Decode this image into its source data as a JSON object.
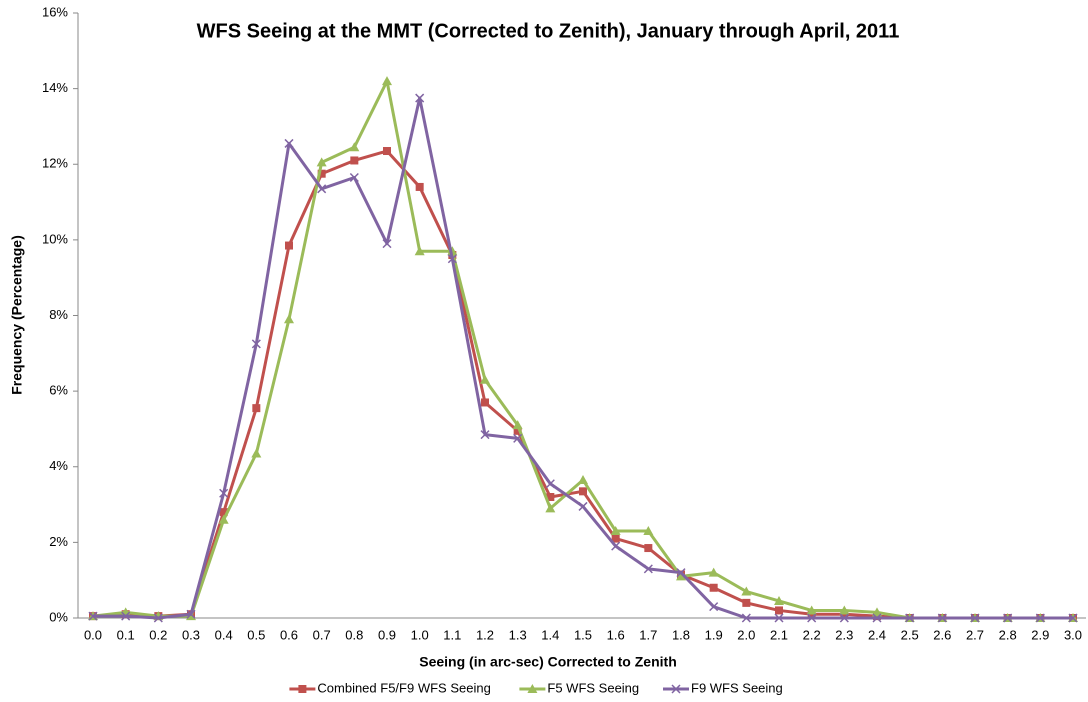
{
  "chart_data": {
    "type": "line",
    "title": "WFS Seeing at the MMT (Corrected to Zenith), January through April, 2011",
    "x_label": "Seeing (in arc-sec) Corrected to Zenith",
    "y_label": "Frequency (Percentage)",
    "categories": [
      "0.0",
      "0.1",
      "0.2",
      "0.3",
      "0.4",
      "0.5",
      "0.6",
      "0.7",
      "0.8",
      "0.9",
      "1.0",
      "1.1",
      "1.2",
      "1.3",
      "1.4",
      "1.5",
      "1.6",
      "1.7",
      "1.8",
      "1.9",
      "2.0",
      "2.1",
      "2.2",
      "2.3",
      "2.4",
      "2.5",
      "2.6",
      "2.7",
      "2.8",
      "2.9",
      "3.0"
    ],
    "series": [
      {
        "name": "Combined F5/F9 WFS Seeing",
        "color": "#c0504d",
        "marker": "square",
        "values": [
          0.05,
          0.1,
          0.05,
          0.1,
          2.8,
          5.55,
          9.85,
          11.75,
          12.1,
          12.35,
          11.4,
          9.6,
          5.7,
          4.95,
          3.2,
          3.35,
          2.1,
          1.85,
          1.15,
          0.8,
          0.4,
          0.2,
          0.1,
          0.1,
          0.05,
          0,
          0,
          0,
          0,
          0,
          0
        ]
      },
      {
        "name": "F5 WFS Seeing",
        "color": "#9bbb59",
        "marker": "triangle",
        "values": [
          0.05,
          0.15,
          0.05,
          0.05,
          2.6,
          4.35,
          7.9,
          12.05,
          12.45,
          14.2,
          9.7,
          9.7,
          6.3,
          5.1,
          2.9,
          3.65,
          2.3,
          2.3,
          1.1,
          1.2,
          0.7,
          0.45,
          0.2,
          0.2,
          0.15,
          0,
          0,
          0,
          0,
          0,
          0
        ]
      },
      {
        "name": "F9 WFS Seeing",
        "color": "#8064a2",
        "marker": "x",
        "values": [
          0.05,
          0.05,
          0,
          0.1,
          3.3,
          7.25,
          12.55,
          11.35,
          11.65,
          9.9,
          13.75,
          9.5,
          4.85,
          4.75,
          3.55,
          2.95,
          1.9,
          1.3,
          1.2,
          0.3,
          0,
          0,
          0,
          0,
          0,
          0,
          0,
          0,
          0,
          0,
          0
        ]
      }
    ],
    "ylim": [
      0,
      16
    ],
    "yticks": [
      {
        "value": 0,
        "label": "0%"
      },
      {
        "value": 2,
        "label": "2%"
      },
      {
        "value": 4,
        "label": "4%"
      },
      {
        "value": 6,
        "label": "6%"
      },
      {
        "value": 8,
        "label": "8%"
      },
      {
        "value": 10,
        "label": "10%"
      },
      {
        "value": 12,
        "label": "12%"
      },
      {
        "value": 14,
        "label": "14%"
      },
      {
        "value": 16,
        "label": "16%"
      }
    ],
    "grid": false,
    "legend": "bottom"
  }
}
